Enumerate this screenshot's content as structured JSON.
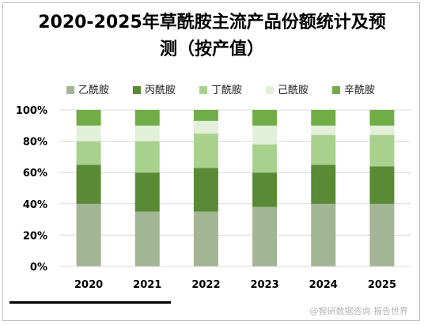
{
  "chart_data": {
    "type": "bar",
    "stacked": true,
    "title_line1": "2020-2025年草酰胺主流产品份额统计及预",
    "title_line2": "测（按产值）",
    "categories": [
      "2020",
      "2021",
      "2022",
      "2023",
      "2024",
      "2025"
    ],
    "series": [
      {
        "name": "乙酰胺",
        "color": "#a2b594",
        "values": [
          40,
          35,
          35,
          38,
          40,
          40
        ]
      },
      {
        "name": "丙酰胺",
        "color": "#5a8a36",
        "values": [
          25,
          25,
          28,
          22,
          25,
          24
        ]
      },
      {
        "name": "丁酰胺",
        "color": "#a9d18e",
        "values": [
          15,
          20,
          22,
          18,
          19,
          20
        ]
      },
      {
        "name": "己酰胺",
        "color": "#e2efd9",
        "values": [
          10,
          10,
          8,
          12,
          6,
          6
        ]
      },
      {
        "name": "辛酰胺",
        "color": "#70ad47",
        "values": [
          10,
          10,
          7,
          10,
          10,
          10
        ]
      }
    ],
    "y_ticks": [
      "0%",
      "20%",
      "40%",
      "60%",
      "80%",
      "100%"
    ],
    "ylim": [
      0,
      100
    ],
    "grid": true,
    "legend_position": "top"
  },
  "watermark": "@智研数据咨询 报告世界"
}
